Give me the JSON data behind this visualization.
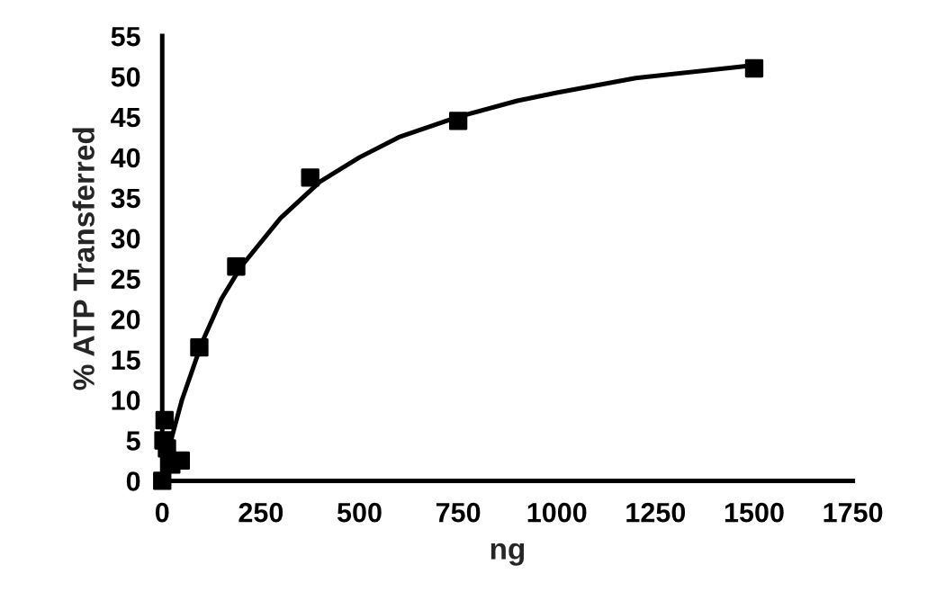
{
  "chart_data": {
    "type": "scatter",
    "xlabel": "ng",
    "ylabel": "% ATP Transferred",
    "xlim": [
      0,
      1750
    ],
    "ylim": [
      0,
      55
    ],
    "xticks": [
      0,
      250,
      500,
      750,
      1000,
      1250,
      1500,
      1750
    ],
    "yticks": [
      0,
      5,
      10,
      15,
      20,
      25,
      30,
      35,
      40,
      45,
      50,
      55
    ],
    "grid": false,
    "legend": false,
    "series": [
      {
        "color": "#000000",
        "marker": "square",
        "x": [
          0,
          3,
          6,
          12,
          23,
          47,
          94,
          187.5,
          375,
          750,
          1500
        ],
        "values": [
          0,
          5,
          7.5,
          4,
          2,
          2.5,
          16.5,
          26.5,
          37.5,
          44.5,
          51
        ]
      },
      {
        "type": "line",
        "color": "#000000",
        "marker": "none",
        "line_style": "solid",
        "x": [
          0,
          25,
          50,
          100,
          150,
          200,
          300,
          400,
          500,
          600,
          750,
          900,
          1000,
          1200,
          1500
        ],
        "values": [
          0,
          5.5,
          10,
          17,
          22.5,
          26.5,
          32.5,
          37,
          40,
          42.5,
          45,
          47,
          48,
          49.8,
          51.4
        ]
      }
    ]
  }
}
